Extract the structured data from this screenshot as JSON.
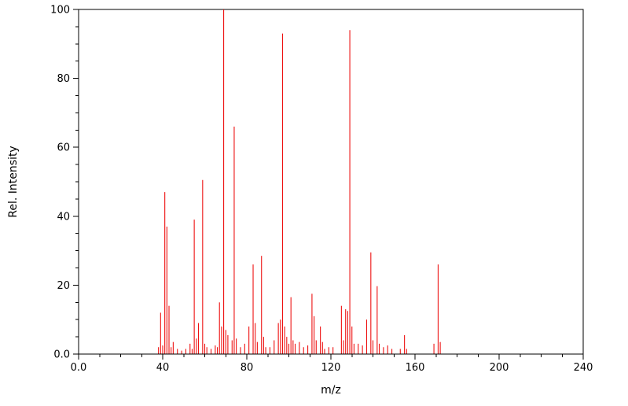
{
  "chart_data": {
    "type": "bar",
    "subtype": "mass-spectrum-stick-plot",
    "title": "",
    "xlabel": "m/z",
    "ylabel": "Rel. Intensity",
    "xlim": [
      0,
      240
    ],
    "ylim": [
      0,
      100
    ],
    "x_major_ticks": [
      0,
      40,
      80,
      120,
      160,
      200,
      240
    ],
    "x_tick_labels": [
      "0.0",
      "40",
      "80",
      "120",
      "160",
      "200",
      "240"
    ],
    "x_minor_step": 10,
    "y_major_ticks": [
      0,
      20,
      40,
      60,
      80,
      100
    ],
    "y_tick_labels": [
      "0.0",
      "20",
      "40",
      "60",
      "80",
      "100"
    ],
    "y_minor_step": 5,
    "grid": false,
    "legend": "none",
    "stick_color": "#ee1111",
    "axis_color": "#000000",
    "background": "#ffffff",
    "peaks": [
      [
        38,
        2
      ],
      [
        39,
        12
      ],
      [
        40,
        2.5
      ],
      [
        41,
        47
      ],
      [
        42,
        37
      ],
      [
        43,
        14
      ],
      [
        44,
        2
      ],
      [
        45,
        3.5
      ],
      [
        47,
        1.5
      ],
      [
        49,
        1
      ],
      [
        51,
        1.5
      ],
      [
        53,
        3
      ],
      [
        54,
        1.5
      ],
      [
        55,
        39
      ],
      [
        56,
        4.5
      ],
      [
        57,
        9
      ],
      [
        59,
        50.5
      ],
      [
        60,
        3
      ],
      [
        61,
        2
      ],
      [
        63,
        1.5
      ],
      [
        65,
        2.5
      ],
      [
        66,
        2
      ],
      [
        67,
        15
      ],
      [
        68,
        8
      ],
      [
        69,
        100
      ],
      [
        70,
        7
      ],
      [
        71,
        5.5
      ],
      [
        73,
        4
      ],
      [
        74,
        66
      ],
      [
        75,
        4.5
      ],
      [
        77,
        2
      ],
      [
        79,
        3
      ],
      [
        81,
        8
      ],
      [
        83,
        26
      ],
      [
        84,
        9
      ],
      [
        85,
        3.5
      ],
      [
        87,
        28.5
      ],
      [
        88,
        5
      ],
      [
        89,
        2
      ],
      [
        91,
        2
      ],
      [
        93,
        4
      ],
      [
        95,
        9
      ],
      [
        96,
        10
      ],
      [
        97,
        93
      ],
      [
        98,
        8
      ],
      [
        99,
        5
      ],
      [
        100,
        3
      ],
      [
        101,
        16.5
      ],
      [
        102,
        4
      ],
      [
        103,
        3
      ],
      [
        105,
        3.5
      ],
      [
        107,
        2
      ],
      [
        109,
        2.5
      ],
      [
        111,
        17.5
      ],
      [
        112,
        11
      ],
      [
        113,
        4
      ],
      [
        115,
        8
      ],
      [
        116,
        3.5
      ],
      [
        117,
        1.5
      ],
      [
        119,
        2
      ],
      [
        121,
        2
      ],
      [
        125,
        14
      ],
      [
        126,
        4
      ],
      [
        127,
        13
      ],
      [
        128,
        12.5
      ],
      [
        129,
        94
      ],
      [
        130,
        8
      ],
      [
        131,
        3
      ],
      [
        133,
        3
      ],
      [
        135,
        2.5
      ],
      [
        137,
        10
      ],
      [
        139,
        29.5
      ],
      [
        140,
        4
      ],
      [
        142,
        19.7
      ],
      [
        143,
        3
      ],
      [
        145,
        2
      ],
      [
        147,
        2.5
      ],
      [
        149,
        1.5
      ],
      [
        153,
        1.5
      ],
      [
        155,
        5.5
      ],
      [
        156,
        1.5
      ],
      [
        169,
        3
      ],
      [
        171,
        26
      ],
      [
        172,
        3.5
      ]
    ]
  }
}
